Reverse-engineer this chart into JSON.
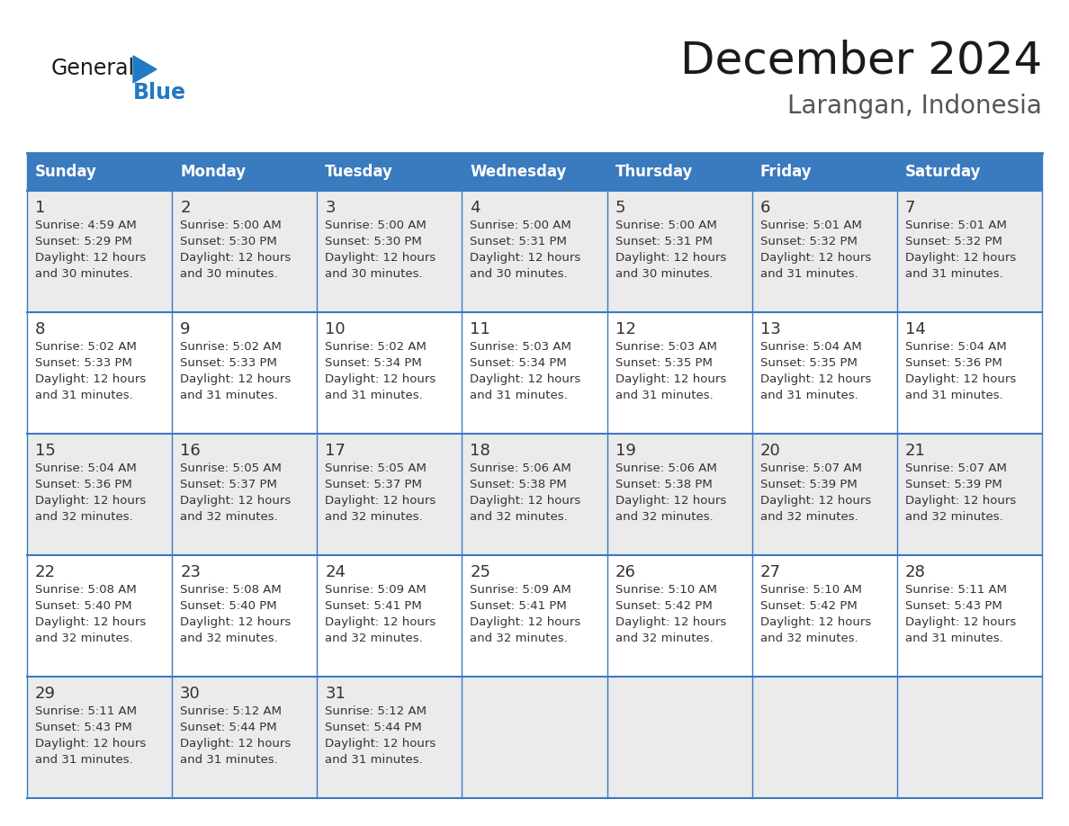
{
  "title": "December 2024",
  "subtitle": "Larangan, Indonesia",
  "header_bg": "#3a7abf",
  "header_text_color": "#ffffff",
  "days_of_week": [
    "Sunday",
    "Monday",
    "Tuesday",
    "Wednesday",
    "Thursday",
    "Friday",
    "Saturday"
  ],
  "row_bg_odd": "#ebebeb",
  "row_bg_even": "#ffffff",
  "cell_text_color": "#333333",
  "grid_line_color": "#3a7abf",
  "calendar_data": [
    [
      {
        "day": 1,
        "sunrise": "4:59 AM",
        "sunset": "5:29 PM",
        "daylight": "12 hours and 30 minutes."
      },
      {
        "day": 2,
        "sunrise": "5:00 AM",
        "sunset": "5:30 PM",
        "daylight": "12 hours and 30 minutes."
      },
      {
        "day": 3,
        "sunrise": "5:00 AM",
        "sunset": "5:30 PM",
        "daylight": "12 hours and 30 minutes."
      },
      {
        "day": 4,
        "sunrise": "5:00 AM",
        "sunset": "5:31 PM",
        "daylight": "12 hours and 30 minutes."
      },
      {
        "day": 5,
        "sunrise": "5:00 AM",
        "sunset": "5:31 PM",
        "daylight": "12 hours and 30 minutes."
      },
      {
        "day": 6,
        "sunrise": "5:01 AM",
        "sunset": "5:32 PM",
        "daylight": "12 hours and 31 minutes."
      },
      {
        "day": 7,
        "sunrise": "5:01 AM",
        "sunset": "5:32 PM",
        "daylight": "12 hours and 31 minutes."
      }
    ],
    [
      {
        "day": 8,
        "sunrise": "5:02 AM",
        "sunset": "5:33 PM",
        "daylight": "12 hours and 31 minutes."
      },
      {
        "day": 9,
        "sunrise": "5:02 AM",
        "sunset": "5:33 PM",
        "daylight": "12 hours and 31 minutes."
      },
      {
        "day": 10,
        "sunrise": "5:02 AM",
        "sunset": "5:34 PM",
        "daylight": "12 hours and 31 minutes."
      },
      {
        "day": 11,
        "sunrise": "5:03 AM",
        "sunset": "5:34 PM",
        "daylight": "12 hours and 31 minutes."
      },
      {
        "day": 12,
        "sunrise": "5:03 AM",
        "sunset": "5:35 PM",
        "daylight": "12 hours and 31 minutes."
      },
      {
        "day": 13,
        "sunrise": "5:04 AM",
        "sunset": "5:35 PM",
        "daylight": "12 hours and 31 minutes."
      },
      {
        "day": 14,
        "sunrise": "5:04 AM",
        "sunset": "5:36 PM",
        "daylight": "12 hours and 31 minutes."
      }
    ],
    [
      {
        "day": 15,
        "sunrise": "5:04 AM",
        "sunset": "5:36 PM",
        "daylight": "12 hours and 32 minutes."
      },
      {
        "day": 16,
        "sunrise": "5:05 AM",
        "sunset": "5:37 PM",
        "daylight": "12 hours and 32 minutes."
      },
      {
        "day": 17,
        "sunrise": "5:05 AM",
        "sunset": "5:37 PM",
        "daylight": "12 hours and 32 minutes."
      },
      {
        "day": 18,
        "sunrise": "5:06 AM",
        "sunset": "5:38 PM",
        "daylight": "12 hours and 32 minutes."
      },
      {
        "day": 19,
        "sunrise": "5:06 AM",
        "sunset": "5:38 PM",
        "daylight": "12 hours and 32 minutes."
      },
      {
        "day": 20,
        "sunrise": "5:07 AM",
        "sunset": "5:39 PM",
        "daylight": "12 hours and 32 minutes."
      },
      {
        "day": 21,
        "sunrise": "5:07 AM",
        "sunset": "5:39 PM",
        "daylight": "12 hours and 32 minutes."
      }
    ],
    [
      {
        "day": 22,
        "sunrise": "5:08 AM",
        "sunset": "5:40 PM",
        "daylight": "12 hours and 32 minutes."
      },
      {
        "day": 23,
        "sunrise": "5:08 AM",
        "sunset": "5:40 PM",
        "daylight": "12 hours and 32 minutes."
      },
      {
        "day": 24,
        "sunrise": "5:09 AM",
        "sunset": "5:41 PM",
        "daylight": "12 hours and 32 minutes."
      },
      {
        "day": 25,
        "sunrise": "5:09 AM",
        "sunset": "5:41 PM",
        "daylight": "12 hours and 32 minutes."
      },
      {
        "day": 26,
        "sunrise": "5:10 AM",
        "sunset": "5:42 PM",
        "daylight": "12 hours and 32 minutes."
      },
      {
        "day": 27,
        "sunrise": "5:10 AM",
        "sunset": "5:42 PM",
        "daylight": "12 hours and 32 minutes."
      },
      {
        "day": 28,
        "sunrise": "5:11 AM",
        "sunset": "5:43 PM",
        "daylight": "12 hours and 31 minutes."
      }
    ],
    [
      {
        "day": 29,
        "sunrise": "5:11 AM",
        "sunset": "5:43 PM",
        "daylight": "12 hours and 31 minutes."
      },
      {
        "day": 30,
        "sunrise": "5:12 AM",
        "sunset": "5:44 PM",
        "daylight": "12 hours and 31 minutes."
      },
      {
        "day": 31,
        "sunrise": "5:12 AM",
        "sunset": "5:44 PM",
        "daylight": "12 hours and 31 minutes."
      },
      null,
      null,
      null,
      null
    ]
  ],
  "logo_color_general": "#1a1a1a",
  "logo_color_blue": "#2279c4",
  "logo_triangle_color": "#2279c4",
  "fig_width": 11.88,
  "fig_height": 9.18,
  "dpi": 100
}
